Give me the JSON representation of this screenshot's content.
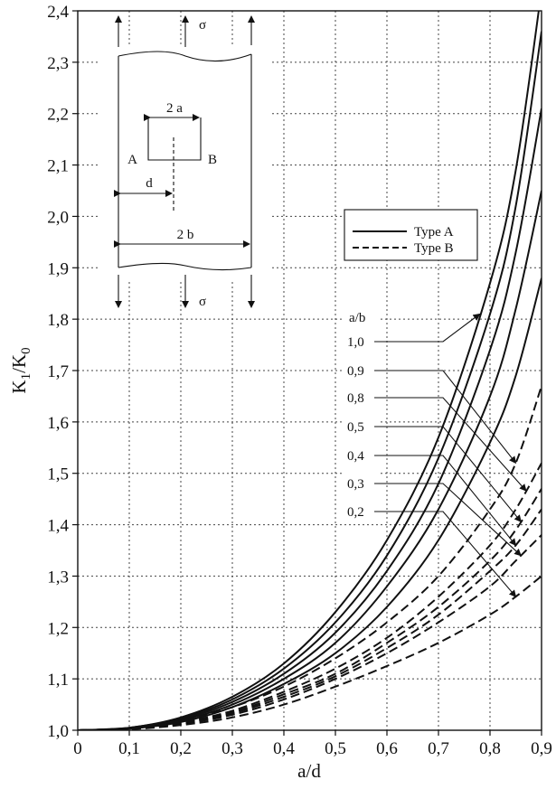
{
  "chart_data": {
    "type": "line",
    "xlabel": "a/d",
    "ylabel_main": "K",
    "ylabel_sub1": "1",
    "ylabel_slash": "/K",
    "ylabel_sub2": "0",
    "xlim": [
      0,
      0.9
    ],
    "ylim": [
      1.0,
      2.4
    ],
    "grid": true,
    "x_ticks": [
      0,
      0.1,
      0.2,
      0.3,
      0.4,
      0.5,
      0.6,
      0.7,
      0.8,
      0.9
    ],
    "x_tick_labels": [
      "0",
      "0,1",
      "0,2",
      "0,3",
      "0,4",
      "0,5",
      "0,6",
      "0,7",
      "0,8",
      "0,9"
    ],
    "y_ticks": [
      1.0,
      1.1,
      1.2,
      1.3,
      1.4,
      1.5,
      1.6,
      1.7,
      1.8,
      1.9,
      2.0,
      2.1,
      2.2,
      2.3,
      2.4
    ],
    "y_tick_labels": [
      "1,0",
      "1,1",
      "1,2",
      "1,3",
      "1,4",
      "1,5",
      "1,6",
      "1,7",
      "1,8",
      "1,9",
      "2,0",
      "2,1",
      "2,2",
      "2,3",
      "2,4"
    ],
    "legend": {
      "position": "center-right",
      "entries": [
        {
          "label": "Type A",
          "style": "solid"
        },
        {
          "label": "Type B",
          "style": "dashed"
        }
      ]
    },
    "param_header": "a/b",
    "param_labels": [
      "1,0",
      "0,9",
      "0,8",
      "0,5",
      "0,4",
      "0,3",
      "0,2"
    ],
    "x": [
      0,
      0.1,
      0.2,
      0.3,
      0.4,
      0.5,
      0.6,
      0.7,
      0.8,
      0.85,
      0.9
    ],
    "series": [
      {
        "group": "A",
        "param": "1,0",
        "style": "solid",
        "y": [
          1.0,
          1.005,
          1.025,
          1.065,
          1.13,
          1.23,
          1.37,
          1.57,
          1.87,
          2.09,
          2.44
        ]
      },
      {
        "group": "A",
        "param": "0,9",
        "style": "solid",
        "y": [
          1.0,
          1.005,
          1.023,
          1.06,
          1.12,
          1.21,
          1.34,
          1.53,
          1.81,
          2.02,
          2.36
        ]
      },
      {
        "group": "A",
        "param": "0,8",
        "style": "solid",
        "y": [
          1.0,
          1.004,
          1.021,
          1.055,
          1.11,
          1.19,
          1.31,
          1.48,
          1.74,
          1.93,
          2.21
        ]
      },
      {
        "group": "A",
        "param": "0,5",
        "style": "solid",
        "y": [
          1.0,
          1.004,
          1.019,
          1.05,
          1.1,
          1.17,
          1.28,
          1.43,
          1.65,
          1.82,
          2.05
        ]
      },
      {
        "group": "A",
        "param": "0,3",
        "style": "solid",
        "y": [
          1.0,
          1.003,
          1.016,
          1.045,
          1.09,
          1.15,
          1.24,
          1.37,
          1.56,
          1.69,
          1.88
        ]
      },
      {
        "group": "B",
        "param": "1,0",
        "style": "dashed",
        "y": [
          1.0,
          1.004,
          1.018,
          1.045,
          1.085,
          1.14,
          1.21,
          1.3,
          1.43,
          1.52,
          1.67
        ]
      },
      {
        "group": "B",
        "param": "0,9",
        "style": "dashed",
        "y": [
          1.0,
          1.003,
          1.015,
          1.038,
          1.075,
          1.12,
          1.18,
          1.26,
          1.36,
          1.43,
          1.52
        ]
      },
      {
        "group": "B",
        "param": "0,8",
        "style": "dashed",
        "y": [
          1.0,
          1.003,
          1.014,
          1.035,
          1.07,
          1.11,
          1.17,
          1.24,
          1.33,
          1.39,
          1.47
        ]
      },
      {
        "group": "B",
        "param": "0,5",
        "style": "dashed",
        "y": [
          1.0,
          1.003,
          1.013,
          1.033,
          1.065,
          1.105,
          1.16,
          1.225,
          1.31,
          1.36,
          1.43
        ]
      },
      {
        "group": "B",
        "param": "0,4",
        "style": "dashed",
        "y": [
          1.0,
          1.002,
          1.012,
          1.03,
          1.06,
          1.1,
          1.15,
          1.21,
          1.28,
          1.33,
          1.38
        ]
      },
      {
        "group": "B",
        "param": "0,2",
        "style": "dashed",
        "y": [
          1.0,
          1.002,
          1.01,
          1.025,
          1.05,
          1.085,
          1.125,
          1.17,
          1.225,
          1.26,
          1.3
        ]
      }
    ],
    "annotations": {
      "sketch": {
        "stress_top": "σ",
        "stress_bottom": "σ",
        "label_2a": "2 a",
        "label_A": "A",
        "label_B": "B",
        "label_d": "d",
        "label_2b": "2 b"
      },
      "param_arrows": [
        {
          "param": "1,0",
          "points_to": "1,0",
          "at_x": 0.78
        },
        {
          "param": "0,9",
          "points_to": "1,0",
          "at_x": 0.85
        },
        {
          "param": "0,8",
          "points_to": "0,9",
          "at_x": 0.87
        },
        {
          "param": "0,5",
          "points_to": "0,8",
          "at_x": 0.86
        },
        {
          "param": "0,4",
          "points_to": "0,5",
          "at_x": 0.85
        },
        {
          "param": "0,3",
          "points_to": "0,4",
          "at_x": 0.86
        },
        {
          "param": "0,2",
          "points_to": "0,2",
          "at_x": 0.85
        }
      ]
    }
  }
}
